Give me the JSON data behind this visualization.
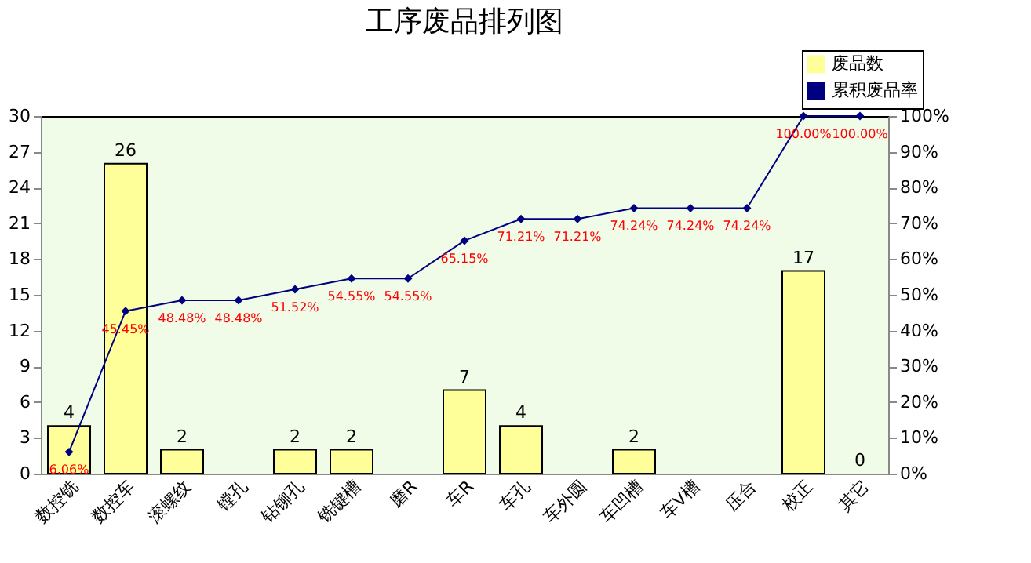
{
  "chart_data": {
    "type": "bar",
    "title": "工序废品排列图",
    "categories": [
      "数控铣",
      "数控车",
      "滚螺纹",
      "镗孔",
      "钻铆孔",
      "铣键槽",
      "磨R",
      "车R",
      "车孔",
      "车外圆",
      "车凹槽",
      "车V槽",
      "压合",
      "校正",
      "其它"
    ],
    "series": [
      {
        "name": "废品数",
        "color": "#ffff99",
        "values": [
          4,
          26,
          2,
          0,
          2,
          2,
          0,
          7,
          4,
          0,
          2,
          0,
          0,
          17,
          0
        ],
        "value_labels": [
          "4",
          "26",
          "2",
          null,
          "2",
          "2",
          null,
          "7",
          "4",
          null,
          "2",
          null,
          null,
          "17",
          "0"
        ]
      },
      {
        "name": "累积废品率",
        "type": "line",
        "axis": "y2",
        "color": "#000080",
        "marker": "diamond",
        "values": [
          6.06,
          45.45,
          48.48,
          48.48,
          51.52,
          54.55,
          54.55,
          65.15,
          71.21,
          71.21,
          74.24,
          74.24,
          74.24,
          100.0,
          100.0
        ],
        "value_labels": [
          "6.06%",
          "45.45%",
          "48.48%",
          "48.48%",
          "51.52%",
          "54.55%",
          "54.55%",
          "65.15%",
          "71.21%",
          "71.21%",
          "74.24%",
          "74.24%",
          "74.24%",
          "100.00%",
          "100.00%"
        ]
      }
    ],
    "ylim": [
      0,
      30
    ],
    "yticks": [
      0,
      3,
      6,
      9,
      12,
      15,
      18,
      21,
      24,
      27,
      30
    ],
    "y2lim": [
      0,
      100
    ],
    "y2ticks": [
      {
        "value": 0,
        "label": "0%"
      },
      {
        "value": 10,
        "label": "10%"
      },
      {
        "value": 20,
        "label": "20%"
      },
      {
        "value": 30,
        "label": "30%"
      },
      {
        "value": 40,
        "label": "40%"
      },
      {
        "value": 50,
        "label": "50%"
      },
      {
        "value": 60,
        "label": "60%"
      },
      {
        "value": 70,
        "label": "70%"
      },
      {
        "value": 80,
        "label": "80%"
      },
      {
        "value": 90,
        "label": "90%"
      },
      {
        "value": 100,
        "label": "100%"
      }
    ],
    "grid": false,
    "legend": "top right"
  }
}
